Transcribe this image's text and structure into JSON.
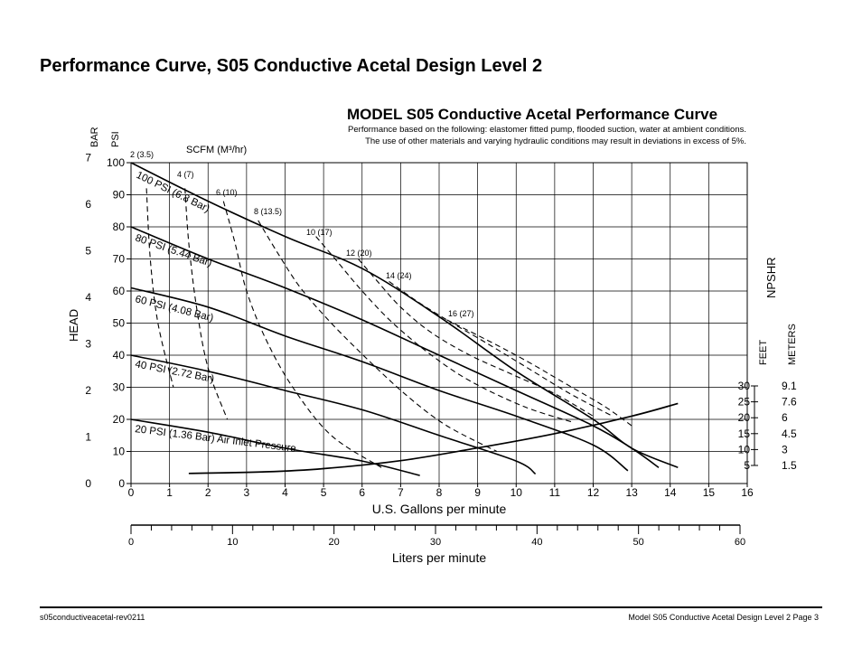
{
  "page": {
    "title": "Performance Curve, S05 Conductive Acetal Design Level 2",
    "footer_left": "s05conductiveacetal-rev0211",
    "footer_right": "Model S05 Conductive Acetal Design Level 2   Page 3"
  },
  "chart_data": {
    "type": "line",
    "title": "MODEL S05 Conductive Acetal Performance Curve",
    "subtitle_lines": [
      "Performance based on the following: elastomer fitted pump, flooded suction, water at ambient conditions.",
      "The use of other materials and varying hydraulic conditions may result in deviations in excess of 5%."
    ],
    "xlabel": "U.S. Gallons per minute",
    "xlim": [
      0,
      16
    ],
    "x_ticks": [
      "0",
      "1",
      "2",
      "3",
      "4",
      "5",
      "6",
      "7",
      "8",
      "9",
      "10",
      "11",
      "12",
      "13",
      "14",
      "15",
      "16"
    ],
    "x2label": "Liters per minute",
    "x2_ticks": [
      "0",
      "10",
      "20",
      "30",
      "40",
      "50",
      "60"
    ],
    "ylabel": "HEAD",
    "ylim": [
      0,
      100
    ],
    "y_unit_psi": "PSI",
    "y_unit_bar": "BAR",
    "psi_ticks": [
      "0",
      "10",
      "20",
      "30",
      "40",
      "50",
      "60",
      "70",
      "80",
      "90",
      "100"
    ],
    "bar_ticks": [
      "0",
      "1",
      "2",
      "3",
      "4",
      "5",
      "6",
      "7"
    ],
    "npshr": {
      "label": "NPSHR",
      "feet_label": "FEET",
      "meters_label": "METERS",
      "feet_ticks": [
        "30",
        "25",
        "20",
        "15",
        "10",
        "5"
      ],
      "meters_ticks": [
        "9.1",
        "7.6",
        "6",
        "4.5",
        "3",
        "1.5"
      ],
      "curve": [
        [
          1.5,
          2.5
        ],
        [
          3.5,
          3
        ],
        [
          5,
          4
        ],
        [
          7,
          6.5
        ],
        [
          9,
          10.5
        ],
        [
          11,
          15
        ],
        [
          13,
          20.5
        ],
        [
          14.2,
          24.5
        ]
      ]
    },
    "scfm_label": "SCFM (M³/hr)",
    "series": [
      {
        "name": "100 PSI (6.8 Bar)",
        "label": "100 PSI (6.8 Bar)",
        "points": [
          [
            0,
            100
          ],
          [
            2,
            88
          ],
          [
            4,
            77
          ],
          [
            6,
            67
          ],
          [
            8,
            52
          ],
          [
            10,
            35
          ],
          [
            12,
            20
          ],
          [
            13,
            11
          ],
          [
            14.2,
            5
          ]
        ]
      },
      {
        "name": "80 PSI (5.44 Bar)",
        "label": "80 PSI (5.44 Bar)",
        "points": [
          [
            0,
            80
          ],
          [
            2,
            70
          ],
          [
            4,
            61
          ],
          [
            6,
            51
          ],
          [
            8,
            40
          ],
          [
            10,
            29
          ],
          [
            12,
            18
          ],
          [
            13,
            11
          ],
          [
            13.7,
            5
          ]
        ]
      },
      {
        "name": "60 PSI (4.08 Bar)",
        "label": "60 PSI (4.08 Bar)",
        "points": [
          [
            0,
            61
          ],
          [
            2,
            55
          ],
          [
            4,
            46
          ],
          [
            6,
            38
          ],
          [
            8,
            29
          ],
          [
            10,
            21
          ],
          [
            12,
            12
          ],
          [
            12.9,
            4
          ]
        ]
      },
      {
        "name": "40 PSI (2.72 Bar)",
        "label": "40 PSI (2.72 Bar)",
        "points": [
          [
            0,
            40
          ],
          [
            2,
            35
          ],
          [
            4,
            29
          ],
          [
            6,
            23
          ],
          [
            8,
            15
          ],
          [
            10,
            7
          ],
          [
            10.5,
            3
          ]
        ]
      },
      {
        "name": "20 PSI (1.36 Bar)",
        "label": "20 PSI (1.36 Bar) Air Inlet Pressure",
        "points": [
          [
            0,
            20
          ],
          [
            2,
            16
          ],
          [
            4,
            11
          ],
          [
            6,
            7
          ],
          [
            7.5,
            2.5
          ]
        ]
      }
    ],
    "scfm_lines": [
      {
        "label": "2 (3.5)",
        "points": [
          [
            0.4,
            92
          ],
          [
            0.5,
            70
          ],
          [
            0.7,
            50
          ],
          [
            1.1,
            30
          ]
        ]
      },
      {
        "label": "4 (7)",
        "points": [
          [
            1.4,
            92
          ],
          [
            1.5,
            75
          ],
          [
            1.7,
            55
          ],
          [
            2.0,
            36
          ],
          [
            2.5,
            20
          ]
        ]
      },
      {
        "label": "6 (10)",
        "points": [
          [
            2.4,
            88
          ],
          [
            2.7,
            75
          ],
          [
            3.0,
            60
          ],
          [
            3.5,
            45
          ],
          [
            4.2,
            30
          ],
          [
            5.2,
            15
          ],
          [
            6.5,
            5
          ]
        ]
      },
      {
        "label": "8 (13.5)",
        "points": [
          [
            3.3,
            82
          ],
          [
            3.8,
            72
          ],
          [
            4.4,
            61
          ],
          [
            5.2,
            50
          ],
          [
            6.2,
            38
          ],
          [
            7.2,
            27
          ],
          [
            8.2,
            18
          ],
          [
            9.5,
            10
          ]
        ]
      },
      {
        "label": "10 (17)",
        "points": [
          [
            4.8,
            77
          ],
          [
            5.3,
            70
          ],
          [
            6.0,
            60
          ],
          [
            6.8,
            50
          ],
          [
            7.8,
            40
          ],
          [
            8.8,
            32
          ],
          [
            10.2,
            24
          ],
          [
            11.5,
            19
          ]
        ]
      },
      {
        "label": "12 (20)",
        "points": [
          [
            5.9,
            70
          ],
          [
            6.4,
            63
          ],
          [
            7.0,
            55
          ],
          [
            7.8,
            47
          ],
          [
            8.8,
            40
          ],
          [
            9.9,
            34
          ],
          [
            11.0,
            28
          ],
          [
            12.0,
            21
          ]
        ]
      },
      {
        "label": "14 (24)",
        "points": [
          [
            6.7,
            63
          ],
          [
            7.4,
            57
          ],
          [
            8.2,
            51
          ],
          [
            9.2,
            44
          ],
          [
            10.3,
            36
          ],
          [
            11.4,
            28
          ],
          [
            12.5,
            21
          ]
        ]
      },
      {
        "label": "16 (27)",
        "points": [
          [
            8.2,
            51
          ],
          [
            9.2,
            45
          ],
          [
            10.3,
            38
          ],
          [
            11.3,
            31
          ],
          [
            12.3,
            24
          ],
          [
            13.0,
            18
          ]
        ]
      }
    ]
  }
}
